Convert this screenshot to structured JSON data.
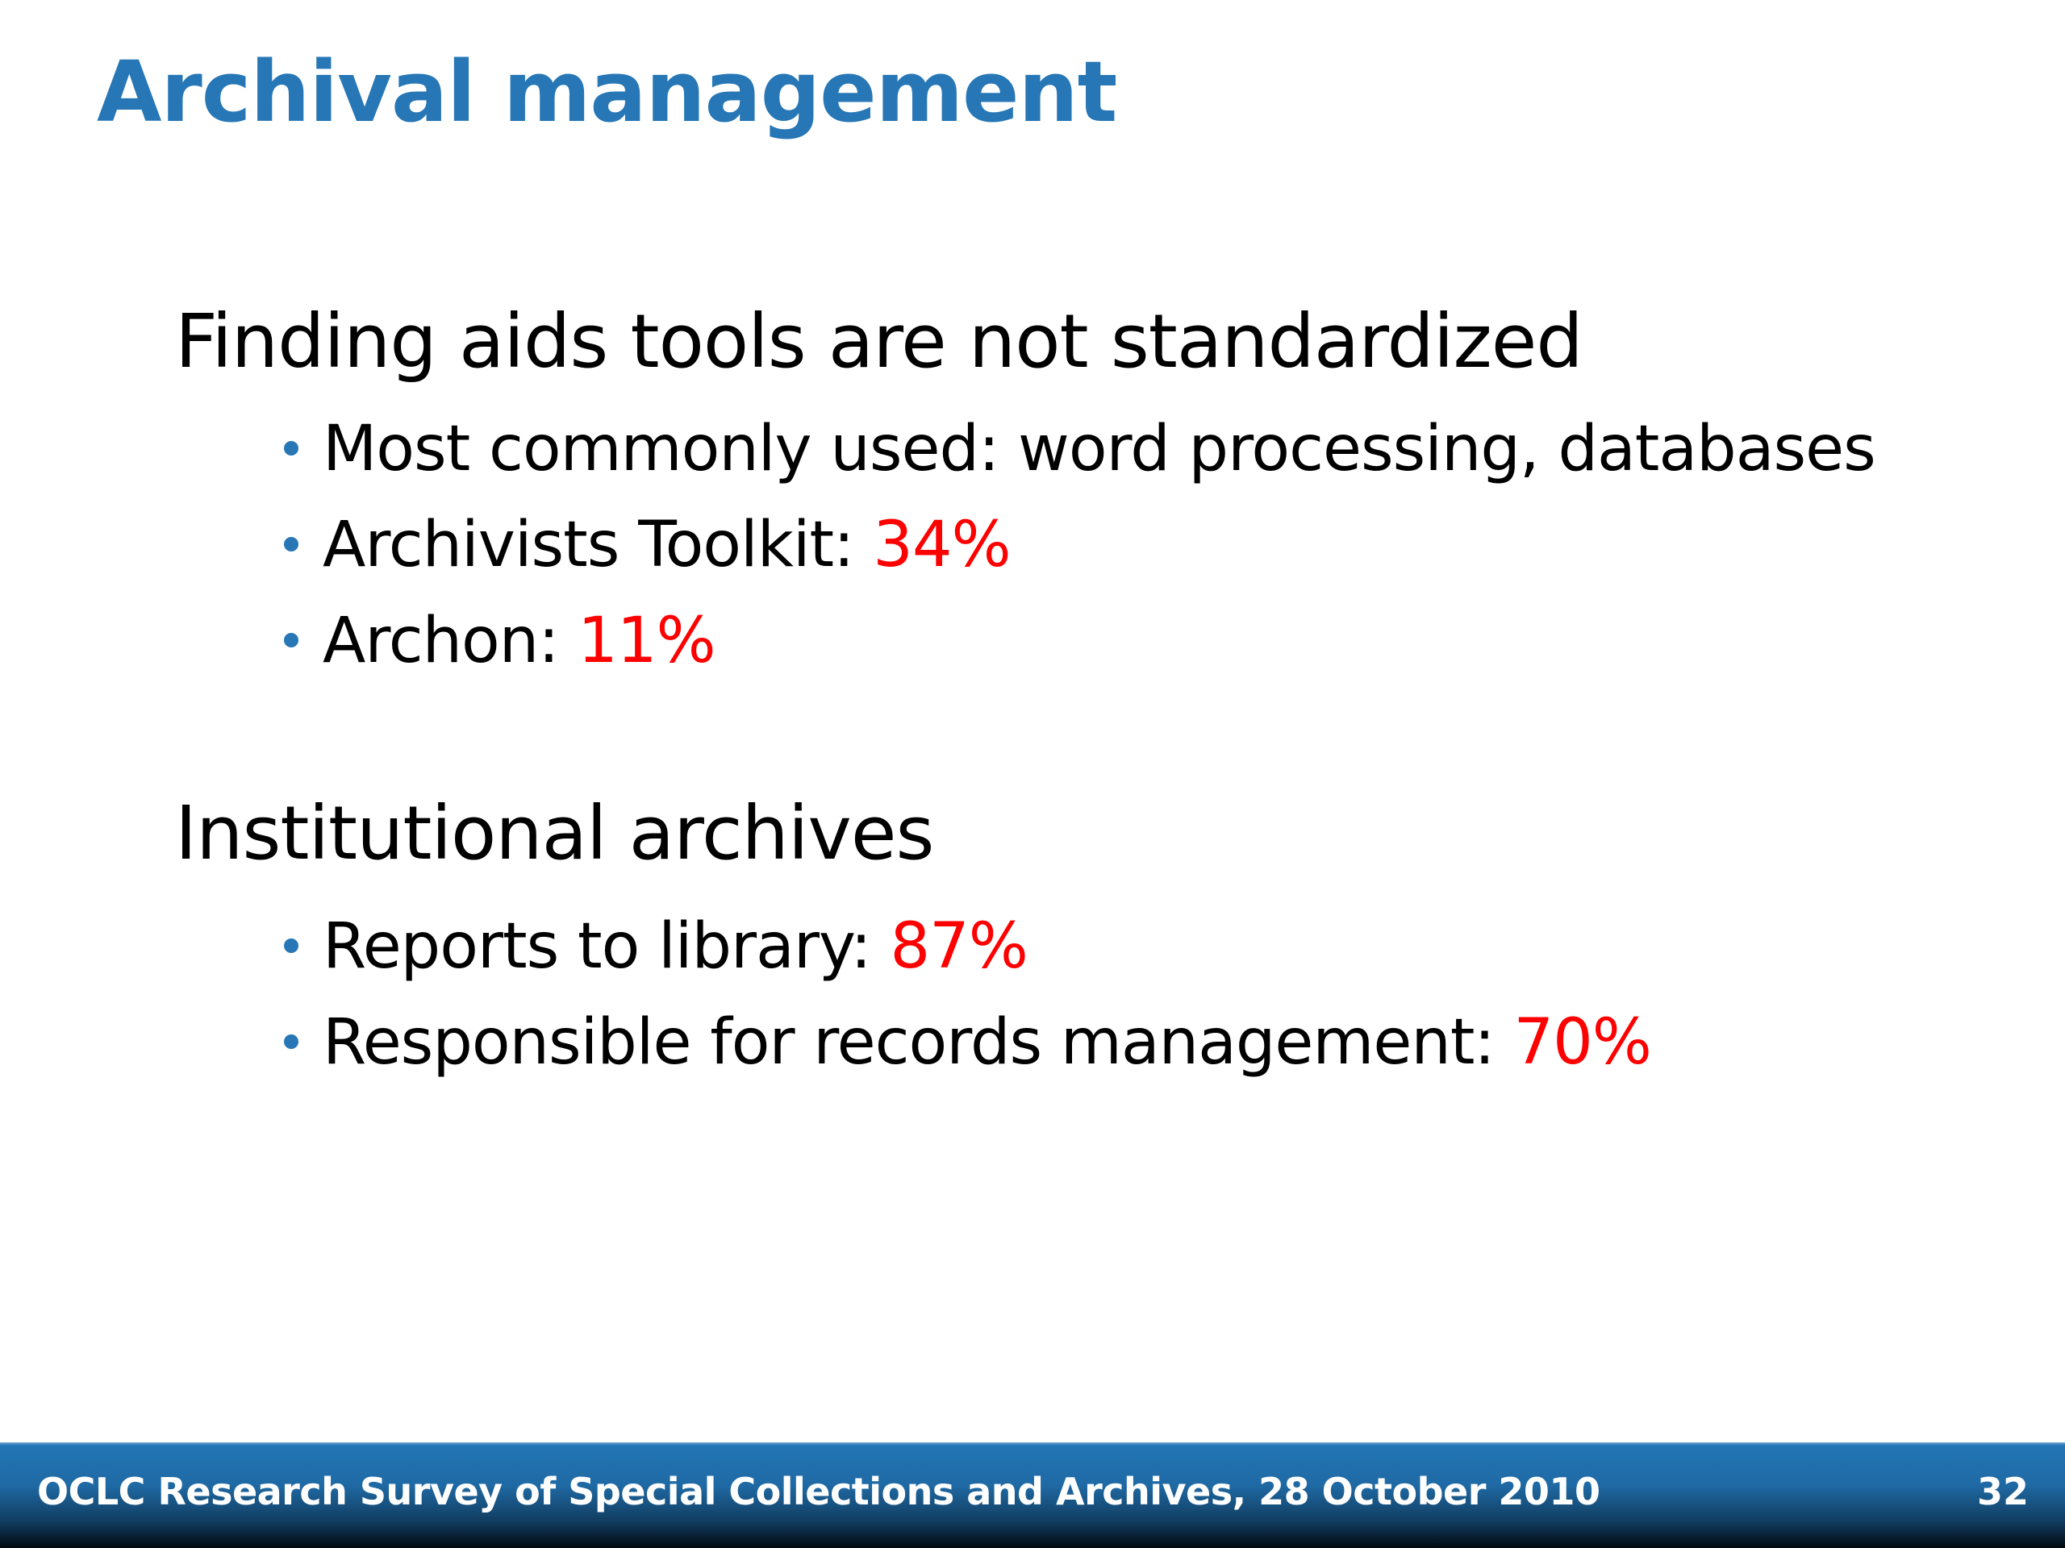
{
  "slide": {
    "title": "Archival management",
    "sections": [
      {
        "heading": "Finding aids tools are not standardized",
        "bullets": [
          {
            "text": "Most commonly used: word processing, databases",
            "value": ""
          },
          {
            "text": "Archivists Toolkit: ",
            "value": "34%"
          },
          {
            "text": "Archon: ",
            "value": "11%"
          }
        ]
      },
      {
        "heading": "Institutional archives",
        "bullets": [
          {
            "text": "Reports to library: ",
            "value": "87%"
          },
          {
            "text": "Responsible for records management: ",
            "value": "70%"
          }
        ]
      }
    ]
  },
  "footer": {
    "text": "OCLC Research Survey of Special Collections and Archives, 28 October 2010",
    "page_number": "32"
  },
  "colors": {
    "title": "#2777b6",
    "highlight": "#ff0000",
    "bullet": "#2777b6"
  }
}
